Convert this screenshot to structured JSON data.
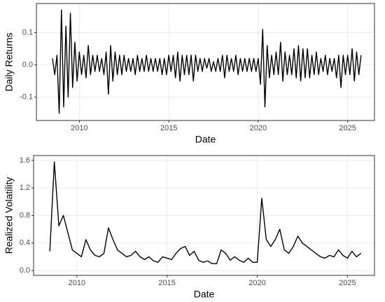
{
  "chart_data": [
    {
      "type": "line",
      "x_label": "Date",
      "y_label": "Daily Returns",
      "color": "#000000",
      "grid": true,
      "xlim": [
        2007.6,
        2026.5
      ],
      "xticks": [
        2010,
        2015,
        2020,
        2025
      ],
      "ylim": [
        -0.172,
        0.19
      ],
      "yticks": [
        {
          "value": -0.1,
          "label": "-0.1"
        },
        {
          "value": 0,
          "label": "0.0"
        },
        0.1
      ],
      "x": [
        2008.5,
        2008.625,
        2008.75,
        2008.875,
        2009,
        2009.125,
        2009.25,
        2009.375,
        2009.5,
        2009.625,
        2009.75,
        2009.875,
        2010,
        2010.125,
        2010.25,
        2010.375,
        2010.5,
        2010.625,
        2010.75,
        2010.875,
        2011,
        2011.125,
        2011.25,
        2011.375,
        2011.5,
        2011.625,
        2011.75,
        2011.875,
        2012,
        2012.125,
        2012.25,
        2012.375,
        2012.5,
        2012.625,
        2012.75,
        2012.875,
        2013,
        2013.125,
        2013.25,
        2013.375,
        2013.5,
        2013.625,
        2013.75,
        2013.875,
        2014,
        2014.125,
        2014.25,
        2014.375,
        2014.5,
        2014.625,
        2014.75,
        2014.875,
        2015,
        2015.125,
        2015.25,
        2015.375,
        2015.5,
        2015.625,
        2015.75,
        2015.875,
        2016,
        2016.125,
        2016.25,
        2016.375,
        2016.5,
        2016.625,
        2016.75,
        2016.875,
        2017,
        2017.125,
        2017.25,
        2017.375,
        2017.5,
        2017.625,
        2017.75,
        2017.875,
        2018,
        2018.125,
        2018.25,
        2018.375,
        2018.5,
        2018.625,
        2018.75,
        2018.875,
        2019,
        2019.125,
        2019.25,
        2019.375,
        2019.5,
        2019.625,
        2019.75,
        2019.875,
        2020,
        2020.125,
        2020.25,
        2020.375,
        2020.5,
        2020.625,
        2020.75,
        2020.875,
        2021,
        2021.125,
        2021.25,
        2021.375,
        2021.5,
        2021.625,
        2021.75,
        2021.875,
        2022,
        2022.125,
        2022.25,
        2022.375,
        2022.5,
        2022.625,
        2022.75,
        2022.875,
        2023,
        2023.125,
        2023.25,
        2023.375,
        2023.5,
        2023.625,
        2023.75,
        2023.875,
        2024,
        2024.125,
        2024.25,
        2024.375,
        2024.5,
        2024.625,
        2024.75,
        2024.875,
        2025,
        2025.125,
        2025.25,
        2025.375,
        2025.5,
        2025.625,
        2025.75
      ],
      "values": [
        0.02,
        -0.03,
        0.03,
        -0.15,
        0.17,
        -0.13,
        0.12,
        -0.1,
        0.16,
        -0.07,
        0.07,
        -0.05,
        0.04,
        -0.03,
        0.03,
        -0.04,
        0.06,
        -0.03,
        0.03,
        -0.02,
        0.03,
        -0.02,
        0.02,
        -0.03,
        0.04,
        -0.09,
        0.06,
        -0.05,
        0.04,
        -0.03,
        0.03,
        -0.03,
        0.03,
        -0.02,
        0.02,
        -0.02,
        0.02,
        -0.03,
        0.03,
        -0.02,
        0.02,
        -0.02,
        0.03,
        -0.02,
        0.02,
        -0.02,
        0.02,
        -0.02,
        0.02,
        -0.03,
        0.02,
        -0.03,
        0.03,
        -0.02,
        0.03,
        -0.04,
        0.04,
        -0.05,
        0.03,
        -0.03,
        0.03,
        -0.03,
        0.03,
        -0.05,
        0.03,
        -0.02,
        0.02,
        -0.02,
        0.02,
        -0.01,
        0.02,
        -0.02,
        0.01,
        -0.02,
        0.02,
        -0.02,
        0.03,
        -0.04,
        0.03,
        -0.02,
        0.02,
        -0.02,
        0.03,
        -0.03,
        0.02,
        -0.02,
        0.02,
        -0.02,
        0.02,
        -0.02,
        0.02,
        -0.02,
        0.02,
        -0.06,
        0.11,
        -0.13,
        0.06,
        -0.04,
        0.03,
        -0.03,
        0.04,
        -0.03,
        0.07,
        -0.05,
        0.04,
        -0.03,
        0.03,
        -0.03,
        0.05,
        -0.04,
        0.06,
        -0.05,
        0.05,
        -0.04,
        0.05,
        -0.04,
        0.03,
        -0.03,
        0.04,
        -0.03,
        0.02,
        -0.02,
        0.03,
        -0.03,
        0.02,
        -0.02,
        0.02,
        -0.04,
        0.03,
        -0.07,
        0.03,
        -0.03,
        0.03,
        -0.03,
        0.05,
        -0.05,
        0.04,
        -0.03,
        0.03
      ]
    },
    {
      "type": "line",
      "x_label": "Date",
      "y_label": "Realized Volatility",
      "color": "#000000",
      "grid": true,
      "xlim": [
        2007.6,
        2026.5
      ],
      "xticks": [
        2010,
        2015,
        2020,
        2025
      ],
      "ylim": [
        -0.07,
        1.67
      ],
      "yticks": [
        {
          "value": 0,
          "label": "0.0"
        },
        0.4,
        0.8,
        1.2,
        1.6
      ],
      "x": [
        2008.5,
        2008.75,
        2009,
        2009.25,
        2009.5,
        2009.75,
        2010,
        2010.25,
        2010.5,
        2010.75,
        2011,
        2011.25,
        2011.5,
        2011.75,
        2012,
        2012.25,
        2012.5,
        2012.75,
        2013,
        2013.25,
        2013.5,
        2013.75,
        2014,
        2014.25,
        2014.5,
        2014.75,
        2015,
        2015.25,
        2015.5,
        2015.75,
        2016,
        2016.25,
        2016.5,
        2016.75,
        2017,
        2017.25,
        2017.5,
        2017.75,
        2018,
        2018.25,
        2018.5,
        2018.75,
        2019,
        2019.25,
        2019.5,
        2019.75,
        2020,
        2020.25,
        2020.5,
        2020.75,
        2021,
        2021.25,
        2021.5,
        2021.75,
        2022,
        2022.25,
        2022.5,
        2022.75,
        2023,
        2023.25,
        2023.5,
        2023.75,
        2024,
        2024.25,
        2024.5,
        2024.75,
        2025,
        2025.25,
        2025.5,
        2025.75
      ],
      "values": [
        0.28,
        1.58,
        0.65,
        0.8,
        0.55,
        0.3,
        0.25,
        0.2,
        0.45,
        0.3,
        0.22,
        0.2,
        0.25,
        0.62,
        0.45,
        0.3,
        0.25,
        0.2,
        0.22,
        0.28,
        0.2,
        0.16,
        0.2,
        0.14,
        0.12,
        0.2,
        0.18,
        0.16,
        0.25,
        0.32,
        0.35,
        0.22,
        0.28,
        0.15,
        0.12,
        0.14,
        0.1,
        0.1,
        0.3,
        0.25,
        0.15,
        0.2,
        0.15,
        0.12,
        0.18,
        0.12,
        0.12,
        1.05,
        0.45,
        0.35,
        0.45,
        0.6,
        0.3,
        0.25,
        0.35,
        0.5,
        0.4,
        0.35,
        0.3,
        0.25,
        0.2,
        0.18,
        0.22,
        0.2,
        0.3,
        0.22,
        0.18,
        0.28,
        0.2,
        0.25
      ]
    }
  ]
}
